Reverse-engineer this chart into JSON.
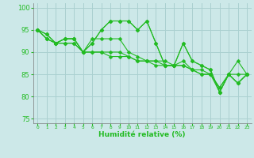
{
  "x": [
    0,
    1,
    2,
    3,
    4,
    5,
    6,
    7,
    8,
    9,
    10,
    11,
    12,
    13,
    14,
    15,
    16,
    17,
    18,
    19,
    20,
    21,
    22,
    23
  ],
  "line1": [
    95,
    94,
    92,
    93,
    93,
    90,
    92,
    95,
    97,
    97,
    97,
    95,
    97,
    92,
    87,
    87,
    92,
    88,
    87,
    86,
    81,
    85,
    83,
    85
  ],
  "line2": [
    95,
    94,
    92,
    93,
    93,
    90,
    92,
    95,
    97,
    97,
    97,
    95,
    97,
    92,
    87,
    87,
    92,
    88,
    87,
    86,
    81,
    85,
    83,
    85
  ],
  "line3": [
    95,
    93,
    92,
    93,
    93,
    90,
    93,
    93,
    93,
    93,
    90,
    89,
    88,
    88,
    88,
    87,
    88,
    86,
    86,
    85,
    81,
    85,
    88,
    85
  ],
  "line4": [
    95,
    93,
    92,
    92,
    92,
    90,
    90,
    90,
    90,
    90,
    89,
    88,
    88,
    88,
    87,
    87,
    87,
    86,
    85,
    85,
    82,
    85,
    85,
    85
  ],
  "line5": [
    95,
    93,
    92,
    92,
    92,
    90,
    90,
    90,
    89,
    89,
    89,
    88,
    88,
    87,
    87,
    87,
    87,
    86,
    85,
    85,
    82,
    85,
    83,
    85
  ],
  "bg_color": "#cce8e8",
  "grid_color": "#aad0d0",
  "line_color": "#22bb22",
  "marker": "D",
  "marker_size": 2.5,
  "xlabel": "Humidité relative (%)",
  "ylim": [
    74,
    101
  ],
  "xlim": [
    -0.5,
    23.5
  ],
  "yticks": [
    75,
    80,
    85,
    90,
    95,
    100
  ],
  "xticks": [
    0,
    1,
    2,
    3,
    4,
    5,
    6,
    7,
    8,
    9,
    10,
    11,
    12,
    13,
    14,
    15,
    16,
    17,
    18,
    19,
    20,
    21,
    22,
    23
  ]
}
